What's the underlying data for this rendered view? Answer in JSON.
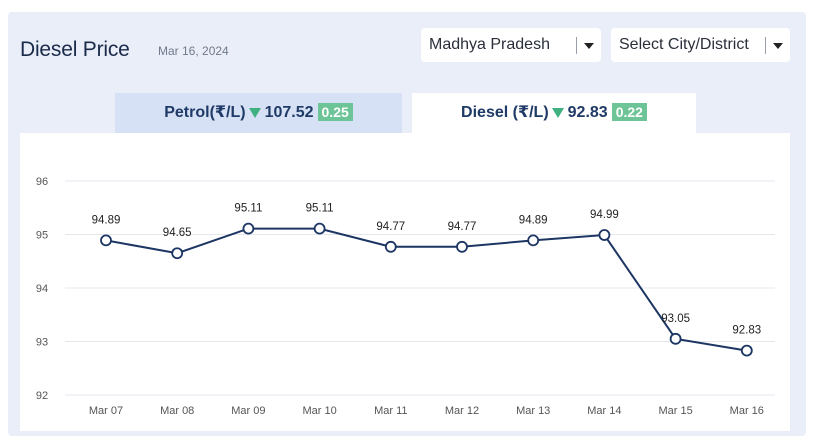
{
  "header": {
    "title": "Diesel Price",
    "date": "Mar 16, 2024"
  },
  "filters": {
    "state": "Madhya Pradesh",
    "city_placeholder": "Select City/District"
  },
  "tabs": {
    "petrol": {
      "label": "Petrol(₹/L)",
      "price": "107.52",
      "change": "0.25",
      "trend": "down"
    },
    "diesel": {
      "label": "Diesel (₹/L)",
      "price": "92.83",
      "change": "0.22",
      "trend": "down",
      "active": true
    }
  },
  "colors": {
    "line": "#1c3563",
    "badge": "#6cc497",
    "trend_down": "#3fb07f",
    "active_tab_bg": "#ffffff",
    "inactive_tab_bg": "#d6e1f5"
  },
  "chart_data": {
    "type": "line",
    "categories": [
      "Mar 07",
      "Mar 08",
      "Mar 09",
      "Mar 10",
      "Mar 11",
      "Mar 12",
      "Mar 13",
      "Mar 14",
      "Mar 15",
      "Mar 16"
    ],
    "values": [
      94.89,
      94.65,
      95.11,
      95.11,
      94.77,
      94.77,
      94.89,
      94.99,
      93.05,
      92.83
    ],
    "data_labels": [
      "94.89",
      "94.65",
      "95.11",
      "95.11",
      "94.77",
      "94.77",
      "94.89",
      "94.99",
      "93.05",
      "92.83"
    ],
    "y_ticks": [
      "96",
      "95",
      "94",
      "93",
      "92"
    ],
    "ylim": [
      92,
      96
    ],
    "grid": true,
    "legend": "none"
  }
}
